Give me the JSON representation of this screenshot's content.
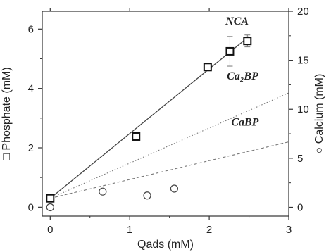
{
  "chart_data": {
    "type": "scatter",
    "xlabel": "Qads (mM)",
    "ylabel": "Phosphate (mM)",
    "y2label": "Calcium (mM)",
    "ylabel_marker": "□",
    "y2label_marker": "○",
    "xlim": [
      -0.1,
      3
    ],
    "ylim": [
      -0.3,
      6.6
    ],
    "y2lim": [
      -0.9,
      20
    ],
    "xticks": [
      0,
      1,
      2,
      3
    ],
    "yticks": [
      0,
      2,
      4,
      6
    ],
    "y2ticks": [
      0,
      5,
      10,
      15,
      20
    ],
    "grid": false,
    "series": [
      {
        "marker": "square",
        "axis": "left",
        "x": [
          0.0,
          1.08,
          1.98,
          2.26,
          2.48
        ],
        "y": [
          0.3,
          2.38,
          4.72,
          5.25,
          5.6
        ],
        "yerr": [
          0.05,
          0.05,
          0.05,
          0.5,
          0.2
        ]
      },
      {
        "marker": "circle",
        "axis": "right",
        "x": [
          0.0,
          0.66,
          1.22,
          1.56
        ],
        "y": [
          0.0,
          1.6,
          1.2,
          1.9
        ]
      }
    ],
    "lines": [
      {
        "style": "solid",
        "x": [
          0,
          2.5
        ],
        "y": [
          0.3,
          5.75
        ]
      },
      {
        "style": "dotted",
        "x": [
          0,
          3
        ],
        "y": [
          0.3,
          3.85
        ]
      },
      {
        "style": "dashed",
        "x": [
          0,
          3
        ],
        "y": [
          0.3,
          2.2
        ]
      }
    ],
    "annotations": [
      {
        "text": "NCA",
        "x": 2.35,
        "y": 6.15
      },
      {
        "text": "Ca₂BP",
        "x": 2.42,
        "y": 4.3
      },
      {
        "text": "CaBP",
        "x": 2.45,
        "y": 2.75
      }
    ]
  }
}
